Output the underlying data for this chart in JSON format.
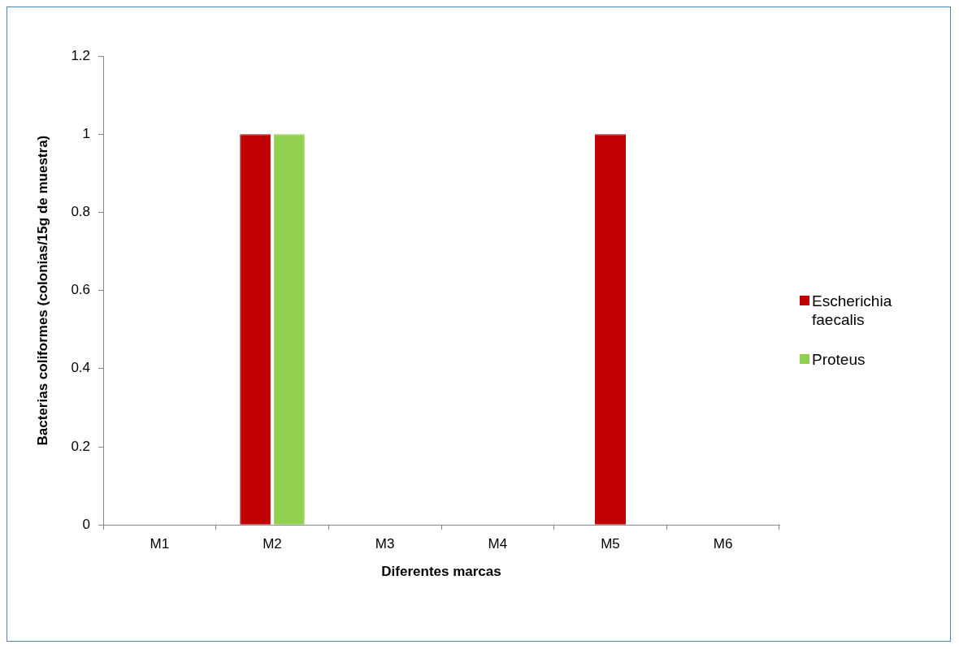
{
  "chart_data": {
    "type": "bar",
    "xlabel": "Diferentes marcas",
    "ylabel": "Bacterias coliformes (colonias/15g de muestra)",
    "categories": [
      "M1",
      "M2",
      "M3",
      "M4",
      "M5",
      "M6"
    ],
    "series": [
      {
        "name": "Escherichia faecalis",
        "color": "#c00000",
        "values": [
          0,
          1,
          0,
          0,
          1,
          0
        ]
      },
      {
        "name": "Proteus",
        "color": "#92d050",
        "values": [
          0,
          1,
          0,
          0,
          null,
          0
        ]
      }
    ],
    "ylim": [
      0,
      1.2
    ],
    "yticks": [
      0,
      0.2,
      0.4,
      0.6,
      0.8,
      1,
      1.2
    ],
    "grid": false,
    "legend": "right"
  }
}
